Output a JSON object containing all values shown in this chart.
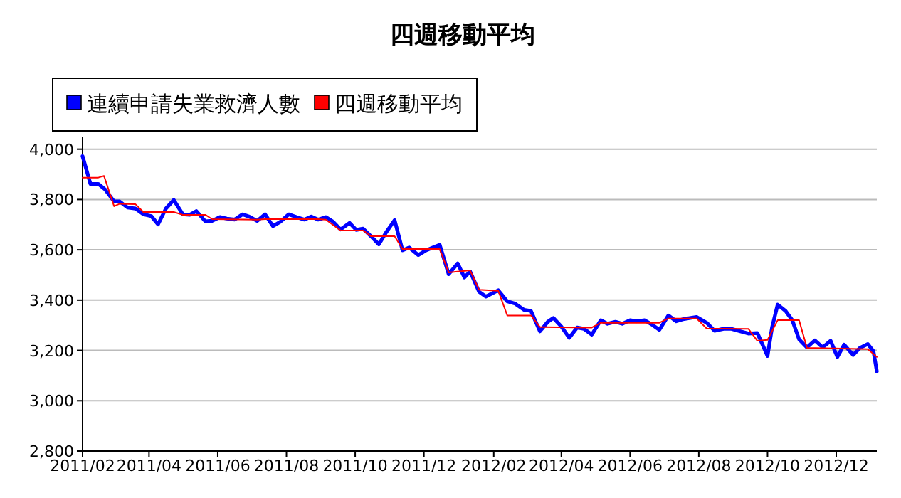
{
  "chart_data": {
    "type": "line",
    "title": "四週移動平均",
    "xlim": [
      "2011-02-01",
      "2013-01-06"
    ],
    "xticks": [
      {
        "value": "2011-02-01",
        "label": "2011/02"
      },
      {
        "value": "2011-04-01",
        "label": "2011/04"
      },
      {
        "value": "2011-06-01",
        "label": "2011/06"
      },
      {
        "value": "2011-08-01",
        "label": "2011/08"
      },
      {
        "value": "2011-10-01",
        "label": "2011/10"
      },
      {
        "value": "2011-12-01",
        "label": "2011/12"
      },
      {
        "value": "2012-02-01",
        "label": "2012/02"
      },
      {
        "value": "2012-04-01",
        "label": "2012/04"
      },
      {
        "value": "2012-06-01",
        "label": "2012/06"
      },
      {
        "value": "2012-08-01",
        "label": "2012/08"
      },
      {
        "value": "2012-10-01",
        "label": "2012/10"
      },
      {
        "value": "2012-12-01",
        "label": "2012/12"
      }
    ],
    "ylim": [
      2800,
      4050
    ],
    "yticks": [
      {
        "value": 2800,
        "label": "2,800"
      },
      {
        "value": 3000,
        "label": "3,000"
      },
      {
        "value": 3200,
        "label": "3,200"
      },
      {
        "value": 3400,
        "label": "3,400"
      },
      {
        "value": 3600,
        "label": "3,600"
      },
      {
        "value": 3800,
        "label": "3,800"
      },
      {
        "value": 4000,
        "label": "4,000"
      }
    ],
    "grid": "y",
    "legend": "top left",
    "marker": "none",
    "line_style": "solid",
    "series": [
      {
        "name": "連續申請失業救濟人數",
        "color": "#0000ff",
        "x": [
          "2011-02-01",
          "2011-02-08",
          "2011-02-15",
          "2011-02-21",
          "2011-03-01",
          "2011-03-06",
          "2011-03-13",
          "2011-03-20",
          "2011-03-27",
          "2011-04-03",
          "2011-04-09",
          "2011-04-16",
          "2011-04-23",
          "2011-05-01",
          "2011-05-07",
          "2011-05-13",
          "2011-05-21",
          "2011-05-27",
          "2011-06-03",
          "2011-06-09",
          "2011-06-16",
          "2011-06-23",
          "2011-06-29",
          "2011-07-06",
          "2011-07-13",
          "2011-07-20",
          "2011-07-27",
          "2011-08-03",
          "2011-08-10",
          "2011-08-17",
          "2011-08-23",
          "2011-08-29",
          "2011-09-05",
          "2011-09-11",
          "2011-09-18",
          "2011-09-26",
          "2011-10-02",
          "2011-10-08",
          "2011-10-15",
          "2011-10-22",
          "2011-10-28",
          "2011-11-05",
          "2011-11-12",
          "2011-11-18",
          "2011-11-26",
          "2011-12-03",
          "2011-12-09",
          "2011-12-15",
          "2011-12-23",
          "2011-12-31",
          "2012-01-06",
          "2012-01-11",
          "2012-01-19",
          "2012-01-25",
          "2012-02-05",
          "2012-02-13",
          "2012-02-20",
          "2012-02-28",
          "2012-03-05",
          "2012-03-13",
          "2012-03-20",
          "2012-03-25",
          "2012-04-01",
          "2012-04-08",
          "2012-04-15",
          "2012-04-21",
          "2012-04-28",
          "2012-05-06",
          "2012-05-12",
          "2012-05-19",
          "2012-05-25",
          "2012-06-01",
          "2012-06-07",
          "2012-06-14",
          "2012-06-21",
          "2012-06-27",
          "2012-07-05",
          "2012-07-12",
          "2012-07-19",
          "2012-07-30",
          "2012-08-08",
          "2012-08-15",
          "2012-08-23",
          "2012-08-30",
          "2012-09-07",
          "2012-09-14",
          "2012-09-22",
          "2012-10-01",
          "2012-10-05",
          "2012-10-10",
          "2012-10-17",
          "2012-10-23",
          "2012-10-29",
          "2012-11-05",
          "2012-11-12",
          "2012-11-19",
          "2012-11-26",
          "2012-12-02",
          "2012-12-08",
          "2012-12-16",
          "2012-12-22",
          "2012-12-29",
          "2013-01-03",
          "2013-01-06"
        ],
        "values": [
          3972,
          3862,
          3862,
          3840,
          3792,
          3792,
          3768,
          3764,
          3741,
          3734,
          3701,
          3764,
          3798,
          3741,
          3739,
          3754,
          3713,
          3715,
          3730,
          3724,
          3720,
          3741,
          3732,
          3715,
          3741,
          3694,
          3713,
          3741,
          3730,
          3720,
          3732,
          3720,
          3730,
          3713,
          3681,
          3707,
          3679,
          3684,
          3654,
          3622,
          3666,
          3718,
          3598,
          3609,
          3579,
          3598,
          3609,
          3620,
          3503,
          3546,
          3490,
          3514,
          3433,
          3414,
          3439,
          3395,
          3386,
          3361,
          3357,
          3276,
          3314,
          3329,
          3295,
          3250,
          3291,
          3286,
          3263,
          3320,
          3306,
          3314,
          3306,
          3320,
          3316,
          3320,
          3301,
          3282,
          3339,
          3316,
          3325,
          3333,
          3310,
          3278,
          3286,
          3286,
          3276,
          3267,
          3269,
          3178,
          3291,
          3382,
          3357,
          3320,
          3244,
          3212,
          3240,
          3212,
          3238,
          3174,
          3223,
          3182,
          3210,
          3225,
          3197,
          3117
        ]
      },
      {
        "name": "四週移動平均",
        "color": "#ff0000",
        "x": [
          "2011-02-01",
          "2011-02-15",
          "2011-02-20",
          "2011-03-01",
          "2011-03-06",
          "2011-03-20",
          "2011-03-27",
          "2011-04-23",
          "2011-05-01",
          "2011-05-21",
          "2011-05-27",
          "2011-07-06",
          "2011-07-13",
          "2011-08-29",
          "2011-09-05",
          "2011-09-18",
          "2011-10-08",
          "2011-10-15",
          "2011-11-05",
          "2011-11-12",
          "2011-12-15",
          "2011-12-23",
          "2012-01-11",
          "2012-01-19",
          "2012-02-05",
          "2012-02-13",
          "2012-03-05",
          "2012-03-13",
          "2012-04-28",
          "2012-05-06",
          "2012-06-27",
          "2012-07-05",
          "2012-07-30",
          "2012-08-08",
          "2012-09-14",
          "2012-09-22",
          "2012-10-01",
          "2012-10-10",
          "2012-10-29",
          "2012-11-05",
          "2012-12-29",
          "2013-01-06"
        ],
        "values": [
          3887,
          3887,
          3894,
          3773,
          3783,
          3781,
          3750,
          3750,
          3739,
          3739,
          3722,
          3720,
          3722,
          3722,
          3720,
          3677,
          3677,
          3654,
          3654,
          3603,
          3603,
          3510,
          3518,
          3441,
          3437,
          3339,
          3339,
          3293,
          3291,
          3310,
          3310,
          3327,
          3327,
          3287,
          3286,
          3238,
          3242,
          3320,
          3320,
          3210,
          3205,
          3174
        ]
      }
    ]
  }
}
